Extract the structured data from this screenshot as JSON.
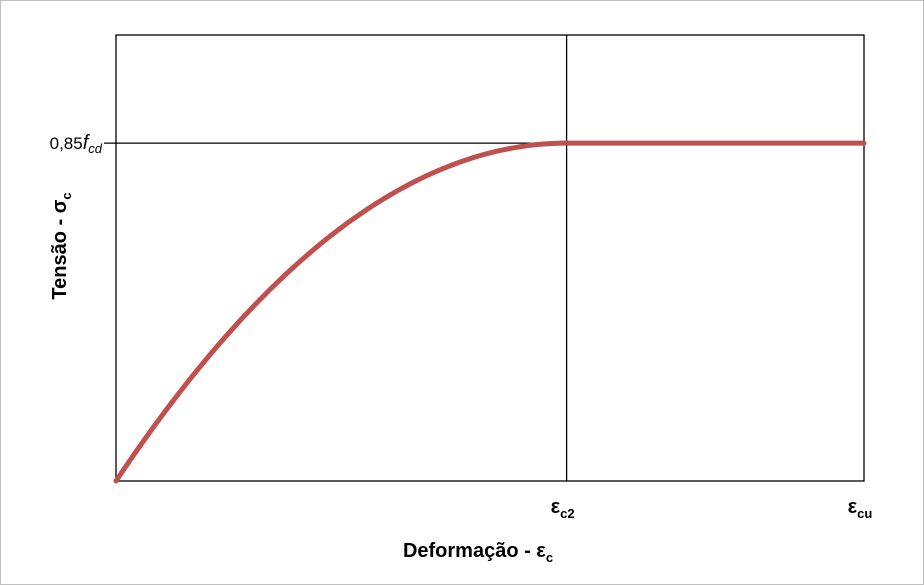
{
  "chart_data": {
    "type": "line",
    "xlabel": "Deformação - εc",
    "xlabel_parts": {
      "main": "Deformação - ε",
      "sub": "c"
    },
    "ylabel": "Tensão - σc",
    "ylabel_parts": {
      "main": "Tensão - σ",
      "sub": "c"
    },
    "x_ticks": [
      {
        "label": "εc2",
        "main": "ε",
        "sub": "c2",
        "value": 1
      },
      {
        "label": "εcu",
        "main": "ε",
        "sub": "cu",
        "value": 1.66
      }
    ],
    "y_ticks": [
      {
        "label": "0,85fcd",
        "main": "0,85",
        "italic": "f",
        "sub": "cd",
        "value": 1
      }
    ],
    "xlim": [
      0,
      1.66
    ],
    "ylim": [
      0,
      1.32
    ],
    "series": [
      {
        "color": "#c0504d",
        "curve": "parabola-rectangle",
        "x": [
          0,
          0.1,
          0.2,
          0.3,
          0.4,
          0.5,
          0.6,
          0.7,
          0.8,
          0.9,
          1.0,
          1.66
        ],
        "y": [
          0,
          0.19,
          0.36,
          0.51,
          0.64,
          0.75,
          0.84,
          0.91,
          0.96,
          0.99,
          1.0,
          1.0
        ]
      }
    ],
    "reference_lines": [
      {
        "axis": "x",
        "value": 1
      },
      {
        "axis": "y",
        "value": 1
      }
    ],
    "grid": false,
    "legend": false
  }
}
